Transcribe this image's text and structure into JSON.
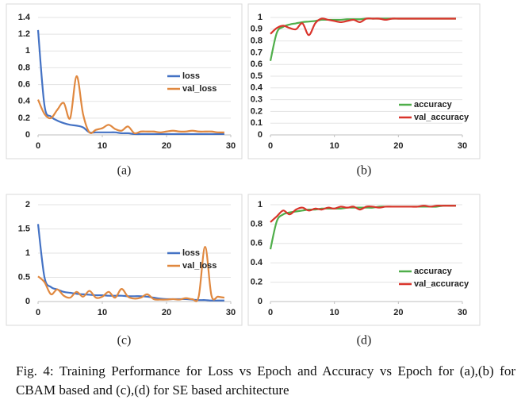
{
  "chart_data": [
    {
      "type": "line",
      "subcaption": "(a)",
      "legend": "center right",
      "x": [
        0,
        1,
        2,
        3,
        4,
        5,
        6,
        7,
        8,
        9,
        10,
        11,
        12,
        13,
        14,
        15,
        16,
        17,
        18,
        19,
        20,
        21,
        22,
        23,
        24,
        25,
        26,
        27,
        28,
        29
      ],
      "series": [
        {
          "name": "loss",
          "color": "#4472c4",
          "values": [
            1.25,
            0.35,
            0.22,
            0.17,
            0.14,
            0.12,
            0.11,
            0.09,
            0.03,
            0.03,
            0.03,
            0.03,
            0.03,
            0.02,
            0.02,
            0.01,
            0.01,
            0.01,
            0.01,
            0.01,
            0.01,
            0.01,
            0.01,
            0.01,
            0.01,
            0.01,
            0.01,
            0.01,
            0.01,
            0.01
          ]
        },
        {
          "name": "val_loss",
          "color": "#e0883f",
          "values": [
            0.42,
            0.25,
            0.2,
            0.3,
            0.38,
            0.2,
            0.7,
            0.25,
            0.03,
            0.06,
            0.08,
            0.12,
            0.07,
            0.05,
            0.1,
            0.02,
            0.04,
            0.04,
            0.04,
            0.03,
            0.04,
            0.05,
            0.04,
            0.04,
            0.05,
            0.04,
            0.04,
            0.04,
            0.03,
            0.03
          ]
        }
      ],
      "xlim": [
        0,
        30
      ],
      "xticks": [
        0,
        10,
        20,
        30
      ],
      "ylim": [
        0,
        1.4
      ],
      "yticks": [
        0,
        0.2,
        0.4,
        0.6,
        0.8,
        1,
        1.2,
        1.4
      ],
      "grid": true
    },
    {
      "type": "line",
      "subcaption": "(b)",
      "legend": "lower right",
      "x": [
        0,
        1,
        2,
        3,
        4,
        5,
        6,
        7,
        8,
        9,
        10,
        11,
        12,
        13,
        14,
        15,
        16,
        17,
        18,
        19,
        20,
        21,
        22,
        23,
        24,
        25,
        26,
        27,
        28,
        29
      ],
      "series": [
        {
          "name": "accuracy",
          "color": "#4fae4a",
          "values": [
            0.63,
            0.87,
            0.92,
            0.94,
            0.95,
            0.96,
            0.965,
            0.97,
            0.98,
            0.98,
            0.98,
            0.98,
            0.985,
            0.985,
            0.985,
            0.99,
            0.99,
            0.99,
            0.99,
            0.99,
            0.99,
            0.99,
            0.99,
            0.99,
            0.99,
            0.99,
            0.99,
            0.99,
            0.99,
            0.99
          ]
        },
        {
          "name": "val_accuracy",
          "color": "#d9342b",
          "values": [
            0.86,
            0.91,
            0.93,
            0.91,
            0.9,
            0.95,
            0.85,
            0.95,
            0.99,
            0.98,
            0.97,
            0.96,
            0.97,
            0.98,
            0.96,
            0.99,
            0.99,
            0.99,
            0.98,
            0.99,
            0.99,
            0.99,
            0.99,
            0.99,
            0.99,
            0.99,
            0.99,
            0.99,
            0.99,
            0.99
          ]
        }
      ],
      "xlim": [
        0,
        30
      ],
      "xticks": [
        0,
        10,
        20,
        30
      ],
      "ylim": [
        0,
        1
      ],
      "yticks": [
        0,
        0.1,
        0.2,
        0.3,
        0.4,
        0.5,
        0.6,
        0.7,
        0.8,
        0.9,
        1
      ],
      "grid": true
    },
    {
      "type": "line",
      "subcaption": "(c)",
      "legend": "center right",
      "x": [
        0,
        1,
        2,
        3,
        4,
        5,
        6,
        7,
        8,
        9,
        10,
        11,
        12,
        13,
        14,
        15,
        16,
        17,
        18,
        19,
        20,
        21,
        22,
        23,
        24,
        25,
        26,
        27,
        28,
        29
      ],
      "series": [
        {
          "name": "loss",
          "color": "#4472c4",
          "values": [
            1.6,
            0.5,
            0.3,
            0.25,
            0.2,
            0.18,
            0.16,
            0.15,
            0.14,
            0.13,
            0.13,
            0.12,
            0.12,
            0.12,
            0.11,
            0.11,
            0.11,
            0.1,
            0.08,
            0.06,
            0.05,
            0.05,
            0.05,
            0.05,
            0.04,
            0.03,
            0.03,
            0.02,
            0.02,
            0.02
          ]
        },
        {
          "name": "val_loss",
          "color": "#e0883f",
          "values": [
            0.52,
            0.4,
            0.15,
            0.25,
            0.12,
            0.08,
            0.2,
            0.1,
            0.22,
            0.08,
            0.1,
            0.2,
            0.08,
            0.26,
            0.1,
            0.06,
            0.08,
            0.15,
            0.05,
            0.04,
            0.04,
            0.05,
            0.04,
            0.07,
            0.05,
            0.1,
            1.13,
            0.12,
            0.1,
            0.08
          ]
        }
      ],
      "xlim": [
        0,
        30
      ],
      "xticks": [
        0,
        10,
        20,
        30
      ],
      "ylim": [
        0,
        2
      ],
      "yticks": [
        0,
        0.5,
        1,
        1.5,
        2
      ],
      "grid": true
    },
    {
      "type": "line",
      "subcaption": "(d)",
      "legend": "lower right",
      "x": [
        0,
        1,
        2,
        3,
        4,
        5,
        6,
        7,
        8,
        9,
        10,
        11,
        12,
        13,
        14,
        15,
        16,
        17,
        18,
        19,
        20,
        21,
        22,
        23,
        24,
        25,
        26,
        27,
        28,
        29
      ],
      "series": [
        {
          "name": "accuracy",
          "color": "#4fae4a",
          "values": [
            0.54,
            0.83,
            0.9,
            0.92,
            0.93,
            0.94,
            0.95,
            0.95,
            0.96,
            0.96,
            0.96,
            0.96,
            0.97,
            0.97,
            0.97,
            0.97,
            0.97,
            0.98,
            0.98,
            0.98,
            0.98,
            0.98,
            0.98,
            0.98,
            0.98,
            0.98,
            0.98,
            0.99,
            0.99,
            0.99
          ]
        },
        {
          "name": "val_accuracy",
          "color": "#d9342b",
          "values": [
            0.82,
            0.88,
            0.94,
            0.9,
            0.95,
            0.97,
            0.94,
            0.96,
            0.95,
            0.97,
            0.96,
            0.98,
            0.97,
            0.98,
            0.95,
            0.98,
            0.98,
            0.97,
            0.98,
            0.98,
            0.98,
            0.98,
            0.98,
            0.98,
            0.99,
            0.98,
            0.99,
            0.99,
            0.99,
            0.99
          ]
        }
      ],
      "xlim": [
        0,
        30
      ],
      "xticks": [
        0,
        10,
        20,
        30
      ],
      "ylim": [
        0,
        1
      ],
      "yticks": [
        0,
        0.2,
        0.4,
        0.6,
        0.8,
        1
      ],
      "grid": true
    }
  ],
  "caption": "Fig. 4: Training Performance for Loss vs Epoch and Accuracy vs Epoch for (a),(b) for CBAM based and (c),(d) for SE based architecture"
}
